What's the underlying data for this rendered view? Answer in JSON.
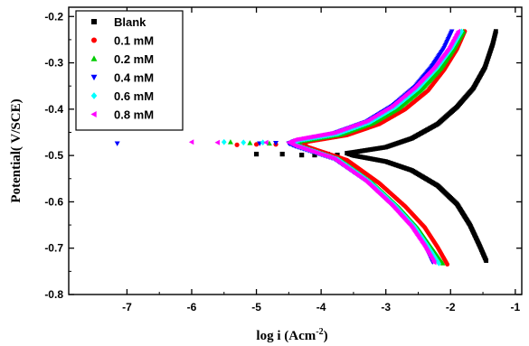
{
  "chart_data": {
    "type": "scatter",
    "xlabel": "log i (Acm",
    "xlabel_sup": "-2",
    "xlabel_close": ")",
    "ylabel": "Potential( V/SCE)",
    "xlim": [
      -7.9,
      -0.9
    ],
    "ylim": [
      -0.8,
      -0.18
    ],
    "x_ticks": [
      -7,
      -6,
      -5,
      -4,
      -3,
      -2,
      -1
    ],
    "x_tick_labels": [
      "-7",
      "-6",
      "-5",
      "-4",
      "-3",
      "-2",
      "-1"
    ],
    "y_ticks": [
      -0.8,
      -0.7,
      -0.6,
      -0.5,
      -0.4,
      -0.3,
      -0.2
    ],
    "y_tick_labels": [
      "-0.8",
      "-0.7",
      "-0.6",
      "-0.5",
      "-0.4",
      "-0.3",
      "-0.2"
    ],
    "grid": false,
    "legend_position": "top-left",
    "series": [
      {
        "name": "Blank",
        "color": "#000000",
        "marker": "square",
        "ecorr": -0.495,
        "icorr": -3.6,
        "anodic": [
          [
            -3.5,
            -0.493
          ],
          [
            -3.0,
            -0.482
          ],
          [
            -2.6,
            -0.463
          ],
          [
            -2.2,
            -0.432
          ],
          [
            -1.9,
            -0.395
          ],
          [
            -1.65,
            -0.355
          ],
          [
            -1.47,
            -0.31
          ],
          [
            -1.35,
            -0.26
          ],
          [
            -1.3,
            -0.232
          ]
        ],
        "cathodic": [
          [
            -3.5,
            -0.5
          ],
          [
            -3.0,
            -0.513
          ],
          [
            -2.6,
            -0.532
          ],
          [
            -2.2,
            -0.565
          ],
          [
            -1.9,
            -0.605
          ],
          [
            -1.7,
            -0.65
          ],
          [
            -1.55,
            -0.695
          ],
          [
            -1.45,
            -0.727
          ]
        ],
        "scatter": [
          [
            -5.0,
            -0.497
          ],
          [
            -4.6,
            -0.497
          ],
          [
            -4.3,
            -0.499
          ],
          [
            -4.1,
            -0.499
          ],
          [
            -3.9,
            -0.497
          ],
          [
            -3.75,
            -0.499
          ]
        ]
      },
      {
        "name": "0.1 mM",
        "color": "#ff0000",
        "marker": "circle",
        "ecorr": -0.476,
        "icorr": -4.3,
        "anodic": [
          [
            -4.2,
            -0.47
          ],
          [
            -3.6,
            -0.456
          ],
          [
            -3.1,
            -0.432
          ],
          [
            -2.7,
            -0.4
          ],
          [
            -2.35,
            -0.36
          ],
          [
            -2.1,
            -0.315
          ],
          [
            -1.9,
            -0.27
          ],
          [
            -1.78,
            -0.232
          ]
        ],
        "cathodic": [
          [
            -4.2,
            -0.482
          ],
          [
            -3.6,
            -0.51
          ],
          [
            -3.1,
            -0.56
          ],
          [
            -2.7,
            -0.61
          ],
          [
            -2.4,
            -0.655
          ],
          [
            -2.2,
            -0.698
          ],
          [
            -2.05,
            -0.735
          ]
        ],
        "scatter": [
          [
            -5.3,
            -0.477
          ],
          [
            -5.0,
            -0.476
          ],
          [
            -4.7,
            -0.476
          ]
        ]
      },
      {
        "name": "0.2 mM",
        "color": "#00cc00",
        "marker": "triangle-up",
        "ecorr": -0.474,
        "icorr": -4.4,
        "anodic": [
          [
            -4.3,
            -0.469
          ],
          [
            -3.7,
            -0.455
          ],
          [
            -3.2,
            -0.43
          ],
          [
            -2.8,
            -0.398
          ],
          [
            -2.45,
            -0.358
          ],
          [
            -2.15,
            -0.312
          ],
          [
            -1.95,
            -0.27
          ],
          [
            -1.8,
            -0.232
          ]
        ],
        "cathodic": [
          [
            -4.3,
            -0.481
          ],
          [
            -3.7,
            -0.51
          ],
          [
            -3.2,
            -0.56
          ],
          [
            -2.8,
            -0.612
          ],
          [
            -2.5,
            -0.658
          ],
          [
            -2.3,
            -0.698
          ],
          [
            -2.12,
            -0.733
          ]
        ],
        "scatter": [
          [
            -5.4,
            -0.471
          ],
          [
            -5.1,
            -0.473
          ],
          [
            -4.8,
            -0.474
          ]
        ]
      },
      {
        "name": "0.4 mM",
        "color": "#0000ff",
        "marker": "triangle-down",
        "ecorr": -0.474,
        "icorr": -4.5,
        "anodic": [
          [
            -4.4,
            -0.468
          ],
          [
            -3.8,
            -0.452
          ],
          [
            -3.3,
            -0.427
          ],
          [
            -2.9,
            -0.393
          ],
          [
            -2.55,
            -0.352
          ],
          [
            -2.3,
            -0.31
          ],
          [
            -2.1,
            -0.268
          ],
          [
            -1.98,
            -0.232
          ]
        ],
        "cathodic": [
          [
            -4.4,
            -0.48
          ],
          [
            -3.8,
            -0.507
          ],
          [
            -3.3,
            -0.555
          ],
          [
            -2.9,
            -0.607
          ],
          [
            -2.6,
            -0.652
          ],
          [
            -2.4,
            -0.693
          ],
          [
            -2.28,
            -0.73
          ]
        ],
        "scatter": [
          [
            -7.15,
            -0.474
          ],
          [
            -4.95,
            -0.474
          ],
          [
            -4.7,
            -0.473
          ]
        ]
      },
      {
        "name": "0.6 mM",
        "color": "#00ffff",
        "marker": "diamond",
        "ecorr": -0.473,
        "icorr": -4.45,
        "anodic": [
          [
            -4.35,
            -0.467
          ],
          [
            -3.75,
            -0.453
          ],
          [
            -3.25,
            -0.428
          ],
          [
            -2.85,
            -0.395
          ],
          [
            -2.5,
            -0.355
          ],
          [
            -2.2,
            -0.31
          ],
          [
            -1.98,
            -0.268
          ],
          [
            -1.83,
            -0.232
          ]
        ],
        "cathodic": [
          [
            -4.35,
            -0.48
          ],
          [
            -3.75,
            -0.508
          ],
          [
            -3.25,
            -0.557
          ],
          [
            -2.85,
            -0.609
          ],
          [
            -2.55,
            -0.655
          ],
          [
            -2.35,
            -0.696
          ],
          [
            -2.18,
            -0.733
          ]
        ],
        "scatter": [
          [
            -5.5,
            -0.471
          ],
          [
            -5.2,
            -0.472
          ],
          [
            -4.9,
            -0.472
          ]
        ]
      },
      {
        "name": "0.8 mM",
        "color": "#ff00ff",
        "marker": "triangle-left",
        "ecorr": -0.472,
        "icorr": -4.5,
        "anodic": [
          [
            -4.4,
            -0.466
          ],
          [
            -3.8,
            -0.451
          ],
          [
            -3.3,
            -0.426
          ],
          [
            -2.9,
            -0.393
          ],
          [
            -2.55,
            -0.353
          ],
          [
            -2.25,
            -0.31
          ],
          [
            -2.02,
            -0.268
          ],
          [
            -1.88,
            -0.232
          ]
        ],
        "cathodic": [
          [
            -4.4,
            -0.479
          ],
          [
            -3.8,
            -0.507
          ],
          [
            -3.3,
            -0.556
          ],
          [
            -2.9,
            -0.608
          ],
          [
            -2.6,
            -0.654
          ],
          [
            -2.4,
            -0.695
          ],
          [
            -2.25,
            -0.731
          ]
        ],
        "scatter": [
          [
            -6.0,
            -0.471
          ],
          [
            -5.6,
            -0.472
          ],
          [
            -4.85,
            -0.472
          ]
        ]
      }
    ]
  }
}
